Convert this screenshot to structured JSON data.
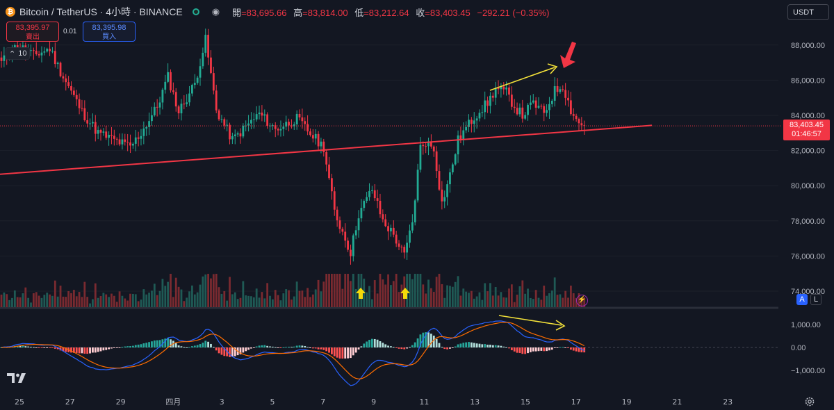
{
  "header": {
    "symbol_label": "Bitcoin / TetherUS · 4小時 · BINANCE",
    "coin_glyph": "₿",
    "market_status_icon": "market-open-dot",
    "ohlc": {
      "open_label": "開",
      "open_value": "=83,695.66",
      "high_label": "高",
      "high_value": "=83,814.00",
      "low_label": "低",
      "low_value": "=83,212.64",
      "close_label": "收",
      "close_value": "=83,403.45",
      "change": "−292.21 (−0.35%)"
    }
  },
  "trade": {
    "sell_price": "83,395.97",
    "sell_label": "賣出",
    "spread": "0.01",
    "buy_price": "83,395.98",
    "buy_label": "買入"
  },
  "volume_toggle": {
    "value": "10"
  },
  "currency_select": {
    "value": "USDT"
  },
  "price_label": {
    "price": "83,403.45",
    "countdown": "01:46:57",
    "color": "#f23645"
  },
  "scale_buttons": {
    "auto": "A",
    "log": "L"
  },
  "colors": {
    "up": "#22ab94",
    "down": "#f23645",
    "background": "#131722",
    "trendline": "#f23645",
    "annotation": "#f5e33a",
    "macd": "#2962ff",
    "signal": "#ff6d00"
  },
  "chart_data": {
    "type": "candlestick",
    "interval": "4h",
    "price_axis": {
      "range": [
        73500,
        89500
      ],
      "ticks": [
        "88,000.00",
        "86,000.00",
        "84,000.00",
        "82,000.00",
        "80,000.00",
        "78,000.00",
        "76,000.00",
        "74,000.00"
      ]
    },
    "macd_axis": {
      "range": [
        -1500,
        1400
      ],
      "ticks": [
        "1,000.00",
        "0.00",
        "−1,000.00"
      ]
    },
    "time_axis": {
      "labels": [
        "25",
        "27",
        "29",
        "四月",
        "3",
        "5",
        "7",
        "9",
        "11",
        "13",
        "15",
        "17",
        "19",
        "21",
        "23"
      ]
    },
    "support_trendline": {
      "from": [
        "Mar 24",
        80650
      ],
      "to": [
        "Apr 17",
        83430
      ]
    },
    "current_price": 83403.45,
    "close_path": [
      [
        0,
        87000
      ],
      [
        6,
        88000
      ],
      [
        12,
        87400
      ],
      [
        18,
        87800
      ],
      [
        22,
        86500
      ],
      [
        30,
        84200
      ],
      [
        36,
        83000
      ],
      [
        42,
        82600
      ],
      [
        48,
        82200
      ],
      [
        52,
        83000
      ],
      [
        58,
        84500
      ],
      [
        62,
        86200
      ],
      [
        66,
        84200
      ],
      [
        72,
        85800
      ],
      [
        76,
        88300
      ],
      [
        80,
        84300
      ],
      [
        86,
        82600
      ],
      [
        90,
        83200
      ],
      [
        96,
        84100
      ],
      [
        102,
        83200
      ],
      [
        110,
        83800
      ],
      [
        116,
        82800
      ],
      [
        120,
        82200
      ],
      [
        124,
        78500
      ],
      [
        128,
        77000
      ],
      [
        130,
        76200
      ],
      [
        133,
        78400
      ],
      [
        138,
        79800
      ],
      [
        142,
        78000
      ],
      [
        146,
        77200
      ],
      [
        150,
        76000
      ],
      [
        153,
        77900
      ],
      [
        156,
        82200
      ],
      [
        158,
        82500
      ],
      [
        161,
        82100
      ],
      [
        164,
        79000
      ],
      [
        167,
        80600
      ],
      [
        170,
        82600
      ],
      [
        174,
        83500
      ],
      [
        178,
        84300
      ],
      [
        181,
        84700
      ],
      [
        184,
        85500
      ],
      [
        188,
        85300
      ],
      [
        191,
        84500
      ],
      [
        194,
        84000
      ],
      [
        198,
        84700
      ],
      [
        202,
        84100
      ],
      [
        206,
        85400
      ],
      [
        209,
        85700
      ],
      [
        212,
        84300
      ],
      [
        215,
        83550
      ],
      [
        217,
        83403
      ]
    ],
    "indicators": [
      "Volume",
      "MACD"
    ],
    "annotations": [
      "rising-highs-arrow",
      "reversal-arrow",
      "macd-falling-arrow",
      "double-bottom-arrows"
    ]
  }
}
